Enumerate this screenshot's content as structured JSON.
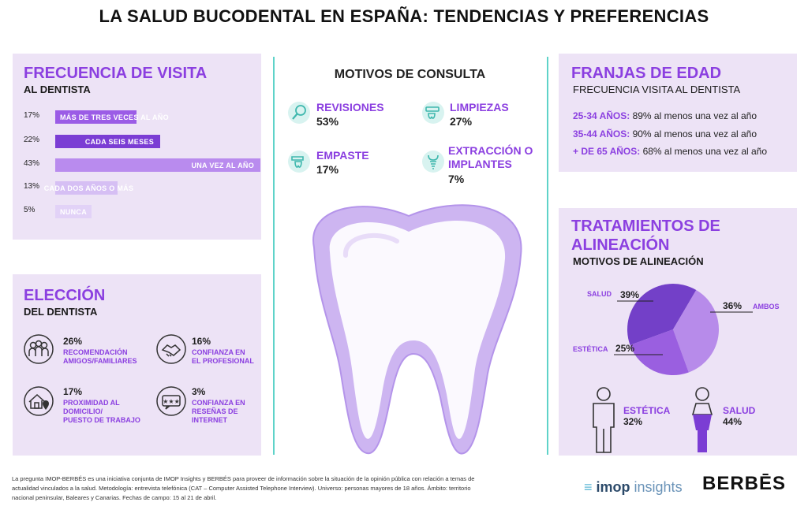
{
  "title": "LA SALUD BUCODENTAL EN ESPAÑA: TENDENCIAS Y PREFERENCIAS",
  "frecuencia": {
    "heading": "FRECUENCIA DE VISITA",
    "subheading": "AL DENTISTA"
  },
  "eleccion": {
    "heading": "ELECCIÓN",
    "subheading": "DEL DENTISTA",
    "items": [
      {
        "pct": "26%",
        "label1": "RECOMENDACIÓN",
        "label2": "AMIGOS/FAMILIARES",
        "icon": "people-icon"
      },
      {
        "pct": "16%",
        "label1": "CONFIANZA EN",
        "label2": "EL PROFESIONAL",
        "icon": "handshake-icon"
      },
      {
        "pct": "17%",
        "label1": "PROXIMIDAD AL",
        "label2": "DOMICILIO/",
        "label3": "PUESTO DE TRABAJO",
        "icon": "house-location-icon"
      },
      {
        "pct": "3%",
        "label1": "CONFIANZA EN",
        "label2": "RESEÑAS DE",
        "label3": "INTERNET",
        "icon": "review-stars-icon"
      }
    ]
  },
  "motivos": {
    "heading": "MOTIVOS DE CONSULTA",
    "items": [
      {
        "label": "REVISIONES",
        "pct": "53%",
        "icon": "magnifier-tooth-icon"
      },
      {
        "label": "LIMPIEZAS",
        "pct": "27%",
        "icon": "toothbrush-icon"
      },
      {
        "label": "EMPASTE",
        "pct": "17%",
        "icon": "drill-icon"
      },
      {
        "label1": "EXTRACCIÓN O",
        "label2": "IMPLANTES",
        "pct": "7%",
        "icon": "implant-icon"
      }
    ]
  },
  "franjas": {
    "heading": "FRANJAS DE EDAD",
    "subheading": "FRECUENCIA VISITA AL DENTISTA",
    "rows": [
      {
        "age": "25-34 AÑOS:",
        "text": " 89% al menos una vez al año"
      },
      {
        "age": "35-44 AÑOS:",
        "text": " 90% al menos una vez al año"
      },
      {
        "age": "+ DE 65 AÑOS:",
        "text": " 68% al menos una vez al año"
      }
    ]
  },
  "tratamientos": {
    "heading1": "TRATAMIENTOS DE",
    "heading2": "ALINEACIÓN",
    "subheading": "MOTIVOS DE ALINEACIÓN",
    "people": [
      {
        "label": "ESTÉTICA",
        "pct": "32%",
        "icon": "man-icon"
      },
      {
        "label": "SALUD",
        "pct": "44%",
        "icon": "woman-icon"
      }
    ]
  },
  "colors": {
    "accent": "#8b3fe0",
    "panel": "#ede3f6",
    "divider": "#5fd3c9",
    "bar_dark": "#9b5ce6",
    "bar_mid": "#7b3dd4",
    "bar_light": "#c9a6f0"
  },
  "chart_data": [
    {
      "type": "bar",
      "orientation": "horizontal",
      "categories": [
        "MÁS DE TRES VECES AL AÑO",
        "CADA SEIS MESES",
        "UNA VEZ AL AÑO",
        "CADA DOS AÑOS O MÁS",
        "NUNCA"
      ],
      "values": [
        17,
        22,
        43,
        13,
        5
      ],
      "value_labels": [
        "17%",
        "22%",
        "43%",
        "13%",
        "5%"
      ],
      "colors": [
        "#9b5ce6",
        "#7b3dd4",
        "#b98bee",
        "#d6bff4",
        "#e2d2f7"
      ]
    },
    {
      "type": "pie",
      "labels": [
        "SALUD",
        "AMBOS",
        "ESTÉTICA"
      ],
      "values": [
        39,
        36,
        25
      ],
      "value_labels": [
        "39%",
        "36%",
        "25%"
      ],
      "colors": [
        "#7340c8",
        "#b78bea",
        "#9a5fe0"
      ]
    }
  ],
  "footer": {
    "line1": "La pregunta IMOP-BERBÉS es una iniciativa conjunta de IMOP Insights y BERBÉS para proveer de información sobre la situación de la opinión pública con relación a temas de",
    "line2": "actualidad vinculados a la salud. Metodología: entrevista telefónica (CAT – Computer Assisted Telephone Interview). Universo: personas mayores de 18 años. Ámbito: territorio",
    "line3": "nacional peninsular, Baleares y Canarias. Fechas de campo: 15 al 21 de abril.",
    "imop_main": "imop",
    "imop_sub": "insights",
    "berbes": "BERBĒS"
  }
}
